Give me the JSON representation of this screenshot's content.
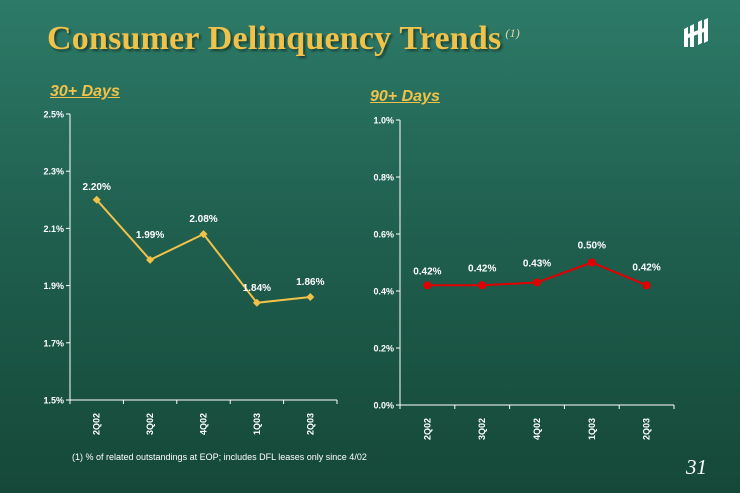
{
  "header": {
    "title": "Consumer Delinquency Trends",
    "title_note": "(1)"
  },
  "footnote": "(1)   % of related outstandings at EOP; includes DFL leases only since 4/02",
  "page_number": "31",
  "colors": {
    "title": "#f0c24a",
    "series_30": "#f0c24a",
    "series_90": "#e00000"
  },
  "chart_data": [
    {
      "type": "line",
      "title": "30+ Days",
      "categories": [
        "2Q02",
        "3Q02",
        "4Q02",
        "1Q03",
        "2Q03"
      ],
      "values": [
        2.2,
        1.99,
        2.08,
        1.84,
        1.86
      ],
      "data_labels": [
        "2.20%",
        "1.99%",
        "2.08%",
        "1.84%",
        "1.86%"
      ],
      "ylim": [
        1.5,
        2.5
      ],
      "yticks": [
        1.5,
        1.7,
        1.9,
        2.1,
        2.3,
        2.5
      ],
      "ytick_labels": [
        "1.5%",
        "1.7%",
        "1.9%",
        "2.1%",
        "2.3%",
        "2.5%"
      ],
      "grid": false,
      "legend": "none"
    },
    {
      "type": "line",
      "title": "90+ Days",
      "categories": [
        "2Q02",
        "3Q02",
        "4Q02",
        "1Q03",
        "2Q03"
      ],
      "values": [
        0.42,
        0.42,
        0.43,
        0.5,
        0.42
      ],
      "data_labels": [
        "0.42%",
        "0.42%",
        "0.43%",
        "0.50%",
        "0.42%"
      ],
      "ylim": [
        0.0,
        1.0
      ],
      "yticks": [
        0.0,
        0.2,
        0.4,
        0.6,
        0.8,
        1.0
      ],
      "ytick_labels": [
        "0.0%",
        "0.2%",
        "0.4%",
        "0.6%",
        "0.8%",
        "1.0%"
      ],
      "grid": false,
      "legend": "none"
    }
  ]
}
